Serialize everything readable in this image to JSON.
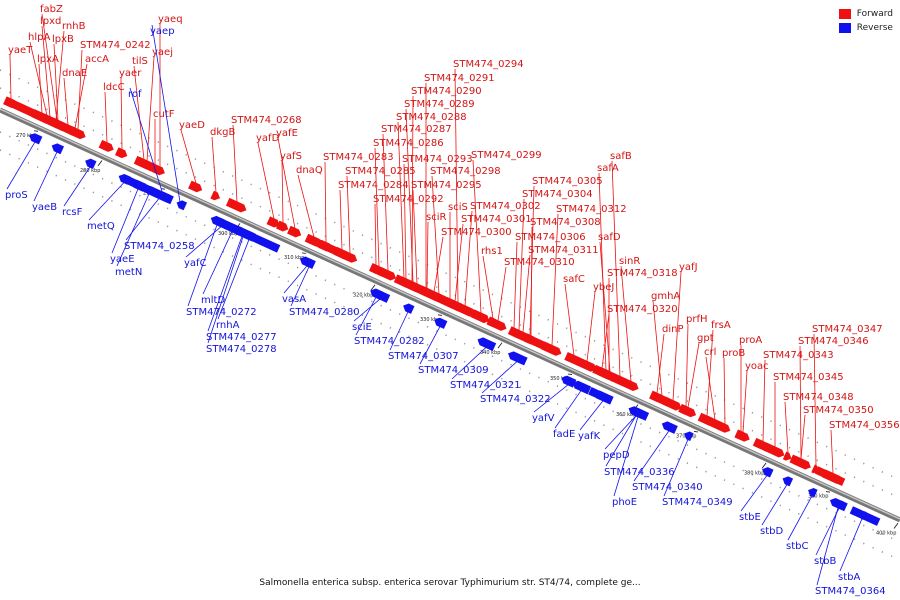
{
  "caption": "Salmonella enterica subsp. enterica serovar Typhimurium str. ST4/74, complete ge...",
  "legend": [
    {
      "label": "Forward",
      "color": "#ee1111"
    },
    {
      "label": "Reverse",
      "color": "#1111ee"
    }
  ],
  "colors": {
    "forward": "#ee1111",
    "reverse": "#1111ee",
    "backbone": "#888888"
  },
  "ticks": [
    "270 kbp",
    "280 kbp",
    "290 kbp",
    "300 kbp",
    "310 kbp",
    "320 kbp",
    "330 kbp",
    "340 kbp",
    "350 kbp",
    "360 kbp",
    "370 kbp",
    "380 kbp",
    "390 kbp",
    "400 kbp"
  ],
  "forward_genes": [
    "fabZ",
    "lpxd",
    "rnhB",
    "hlpA",
    "lpxB",
    "yaeT",
    "lpxA",
    "dnaE",
    "STM474_0242",
    "accA",
    "ldcC",
    "yaer",
    "tilS",
    "yaej",
    "yaeq",
    "cutF",
    "yaeD",
    "dkgB",
    "STM474_0268",
    "yafE",
    "yafD",
    "yafS",
    "dnaQ",
    "STM474_0283",
    "STM474_0284",
    "STM474_0285",
    "STM474_0286",
    "STM474_0287",
    "STM474_0288",
    "STM474_0289",
    "STM474_0290",
    "STM474_0291",
    "STM474_0292",
    "STM474_0293",
    "STM474_0294",
    "STM474_0295",
    "STM474_0298",
    "STM474_0299",
    "sciS",
    "sciR",
    "STM474_0300",
    "STM474_0301",
    "STM474_0302",
    "STM474_0304",
    "STM474_0305",
    "STM474_0306",
    "STM474_0308",
    "STM474_0310",
    "STM474_0311",
    "STM474_0312",
    "rhs1",
    "safA",
    "safB",
    "safC",
    "safD",
    "sinR",
    "STM474_0318",
    "yafJ",
    "ybeJ",
    "gmhA",
    "STM474_0320",
    "dinP",
    "prfH",
    "frsA",
    "gpt",
    "crl",
    "proA",
    "proB",
    "yoac",
    "STM474_0343",
    "STM474_0345",
    "STM474_0346",
    "STM474_0347",
    "STM474_0348",
    "STM474_0350",
    "STM474_0356"
  ],
  "reverse_genes": [
    "yaep",
    "rof",
    "proS",
    "yaeB",
    "rcsF",
    "metQ",
    "STM474_0258",
    "yaeE",
    "metN",
    "yafC",
    "mltD",
    "STM474_0272",
    "rnhA",
    "STM474_0277",
    "STM474_0278",
    "vasA",
    "STM474_0280",
    "sciE",
    "STM474_0282",
    "STM474_0307",
    "STM474_0309",
    "STM474_0321",
    "STM474_0322",
    "yafV",
    "fadE",
    "yafK",
    "pepD",
    "STM474_0336",
    "STM474_0340",
    "phoE",
    "STM474_0349",
    "stbE",
    "stbD",
    "stbC",
    "stbB",
    "stbA",
    "STM474_0364"
  ]
}
